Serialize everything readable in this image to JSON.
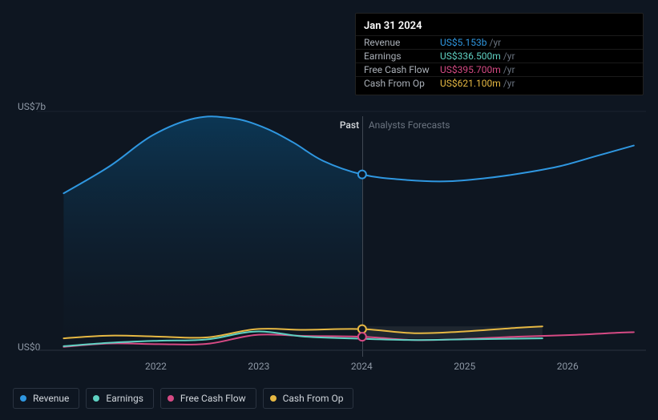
{
  "chart": {
    "type": "line",
    "background": "#0e1621",
    "grid_color": "#1b232e",
    "divider_color": "#404853",
    "area_fill_top": "#0c3a5a",
    "area_fill_bottom": "#0f1a26",
    "y_top_label": "US$7b",
    "y_bottom_label": "US$0",
    "ylim": [
      0,
      7
    ],
    "x_years": [
      "2022",
      "2023",
      "2024",
      "2025",
      "2026"
    ],
    "x_positions": [
      0.196,
      0.365,
      0.534,
      0.703,
      0.872
    ],
    "divider_x": 0.534,
    "past_label": "Past",
    "forecast_label": "Analysts Forecasts",
    "series": [
      {
        "key": "revenue",
        "label": "Revenue",
        "color": "#2f97e0",
        "stroke_width": 2,
        "area": true,
        "points": [
          [
            0.044,
            4.6
          ],
          [
            0.12,
            5.4
          ],
          [
            0.19,
            6.3
          ],
          [
            0.26,
            6.8
          ],
          [
            0.32,
            6.8
          ],
          [
            0.37,
            6.55
          ],
          [
            0.42,
            6.1
          ],
          [
            0.47,
            5.55
          ],
          [
            0.534,
            5.153
          ],
          [
            0.6,
            5.0
          ],
          [
            0.67,
            4.95
          ],
          [
            0.74,
            5.05
          ],
          [
            0.8,
            5.2
          ],
          [
            0.86,
            5.4
          ],
          [
            0.92,
            5.7
          ],
          [
            0.98,
            6.0
          ]
        ]
      },
      {
        "key": "cash_from_op",
        "label": "Cash From Op",
        "color": "#e6b843",
        "stroke_width": 2,
        "area": false,
        "points": [
          [
            0.044,
            0.35
          ],
          [
            0.12,
            0.43
          ],
          [
            0.2,
            0.4
          ],
          [
            0.28,
            0.38
          ],
          [
            0.36,
            0.62
          ],
          [
            0.44,
            0.6
          ],
          [
            0.534,
            0.621
          ],
          [
            0.62,
            0.5
          ],
          [
            0.7,
            0.55
          ],
          [
            0.79,
            0.66
          ],
          [
            0.83,
            0.7
          ]
        ]
      },
      {
        "key": "free_cash_flow",
        "label": "Free Cash Flow",
        "color": "#d64a84",
        "stroke_width": 2,
        "area": false,
        "points": [
          [
            0.044,
            0.1
          ],
          [
            0.12,
            0.2
          ],
          [
            0.2,
            0.18
          ],
          [
            0.28,
            0.19
          ],
          [
            0.36,
            0.45
          ],
          [
            0.44,
            0.42
          ],
          [
            0.534,
            0.3957
          ],
          [
            0.62,
            0.3
          ],
          [
            0.7,
            0.33
          ],
          [
            0.79,
            0.4
          ],
          [
            0.88,
            0.45
          ],
          [
            0.96,
            0.52
          ],
          [
            0.98,
            0.53
          ]
        ]
      },
      {
        "key": "earnings",
        "label": "Earnings",
        "color": "#5fd1c2",
        "stroke_width": 2,
        "area": false,
        "points": [
          [
            0.044,
            0.12
          ],
          [
            0.12,
            0.22
          ],
          [
            0.2,
            0.28
          ],
          [
            0.28,
            0.32
          ],
          [
            0.36,
            0.55
          ],
          [
            0.44,
            0.4
          ],
          [
            0.534,
            0.3365
          ],
          [
            0.62,
            0.3
          ],
          [
            0.7,
            0.32
          ],
          [
            0.79,
            0.34
          ],
          [
            0.83,
            0.35
          ]
        ]
      }
    ],
    "markers": [
      {
        "series": "revenue",
        "x": 0.534,
        "y": 5.153,
        "fill": "#0e1621",
        "stroke": "#2f97e0",
        "r": 5
      },
      {
        "series": "cash_from_op",
        "x": 0.534,
        "y": 0.621,
        "fill": "#0e1621",
        "stroke": "#e6b843",
        "r": 5
      },
      {
        "series": "free_cash_flow",
        "x": 0.534,
        "y": 0.3957,
        "fill": "#0e1621",
        "stroke": "#d64a84",
        "r": 5
      }
    ],
    "forecast_band": {
      "y": 0.35,
      "height": 0.35,
      "color": "#5a5f66",
      "opacity": 0.22
    }
  },
  "tooltip": {
    "date": "Jan 31 2024",
    "rows": [
      {
        "label": "Revenue",
        "value": "US$5.153b",
        "suffix": "/yr",
        "color": "#2f97e0"
      },
      {
        "label": "Earnings",
        "value": "US$336.500m",
        "suffix": "/yr",
        "color": "#5fd1c2"
      },
      {
        "label": "Free Cash Flow",
        "value": "US$395.700m",
        "suffix": "/yr",
        "color": "#d64a84"
      },
      {
        "label": "Cash From Op",
        "value": "US$621.100m",
        "suffix": "/yr",
        "color": "#e6b843"
      }
    ]
  },
  "legend": [
    {
      "key": "revenue",
      "label": "Revenue",
      "color": "#2f97e0"
    },
    {
      "key": "earnings",
      "label": "Earnings",
      "color": "#5fd1c2"
    },
    {
      "key": "free_cash_flow",
      "label": "Free Cash Flow",
      "color": "#d64a84"
    },
    {
      "key": "cash_from_op",
      "label": "Cash From Op",
      "color": "#e6b843"
    }
  ]
}
